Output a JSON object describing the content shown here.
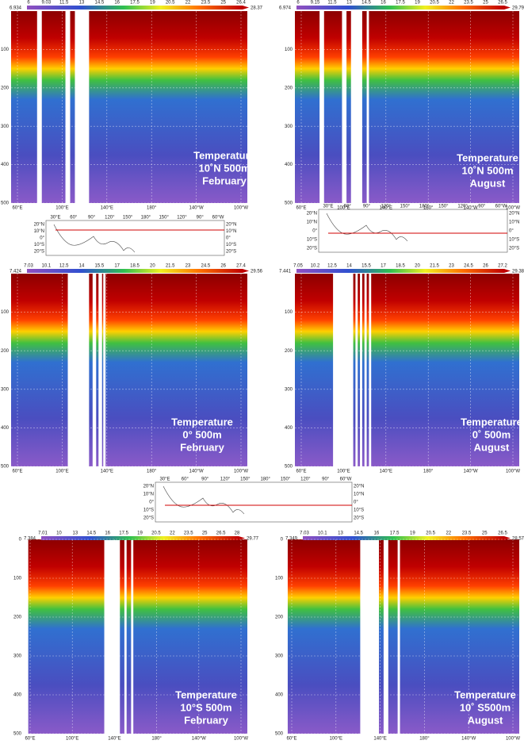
{
  "panels": [
    {
      "colorbar": {
        "min": "6.934",
        "max": "28.37",
        "ticks": [
          "6",
          "9.03",
          "11.5",
          "13",
          "14.5",
          "16",
          "17.5",
          "19",
          "20.5",
          "22",
          "23.5",
          "25",
          "26.4"
        ]
      },
      "y_labels": [
        "100",
        "200",
        "300",
        "400",
        "500"
      ],
      "x_labels": [
        "60°E",
        "100°E",
        "140°E",
        "180°",
        "140°W",
        "100°W"
      ],
      "annotation": [
        "Temperature",
        "10˚N 500m",
        "February"
      ]
    },
    {
      "colorbar": {
        "min": "6.974",
        "max": "29.79",
        "ticks": [
          "6",
          "9.15",
          "11.5",
          "13",
          "14.5",
          "16",
          "17.5",
          "19",
          "20.5",
          "22",
          "23.5",
          "25",
          "26.5"
        ]
      },
      "y_labels": [
        "100",
        "200",
        "300",
        "400",
        "500"
      ],
      "x_labels": [
        "60°E",
        "100°E",
        "140°E",
        "180°",
        "140°W",
        "100°W"
      ],
      "annotation": [
        "Temperature",
        "10˚N 500m",
        "August"
      ]
    },
    {
      "colorbar": {
        "min": "7.424",
        "max": "29.56",
        "ticks": [
          "7.03",
          "10.1",
          "12.5",
          "14",
          "15.5",
          "17",
          "18.5",
          "20",
          "21.5",
          "23",
          "24.5",
          "26",
          "27.4"
        ]
      },
      "y_labels": [
        "100",
        "200",
        "300",
        "400",
        "500"
      ],
      "x_labels": [
        "60°E",
        "100°E",
        "140°E",
        "180°",
        "140°W",
        "100°W"
      ],
      "annotation": [
        "Temperature",
        "0° 500m",
        "February"
      ]
    },
    {
      "colorbar": {
        "min": "7.441",
        "max": "29.38",
        "ticks": [
          "7.05",
          "10.2",
          "12.5",
          "14",
          "15.5",
          "17",
          "18.5",
          "20",
          "21.5",
          "23",
          "24.5",
          "26",
          "27.2"
        ]
      },
      "y_labels": [
        "100",
        "200",
        "300",
        "400",
        "500"
      ],
      "x_labels": [
        "60°E",
        "100°E",
        "140°E",
        "180°",
        "140°W",
        "100°W"
      ],
      "annotation": [
        "Temperature",
        "0˚ 500m",
        "August"
      ]
    },
    {
      "colorbar": {
        "min": "7.384",
        "max": "29.77",
        "ticks": [
          "7.01",
          "10",
          "13",
          "14.5",
          "16",
          "17.5",
          "19",
          "20.5",
          "22",
          "23.5",
          "25",
          "26.5",
          "28"
        ]
      },
      "y_labels": [
        "0",
        "100",
        "200",
        "300",
        "400",
        "500"
      ],
      "x_labels": [
        "60°E",
        "100°E",
        "140°E",
        "180°",
        "140°W",
        "100°W"
      ],
      "annotation": [
        "Temperature",
        "10°S 500m",
        "February"
      ]
    },
    {
      "colorbar": {
        "min": "7.349",
        "max": "28.57",
        "ticks": [
          "7.03",
          "10.1",
          "13",
          "14.5",
          "16",
          "17.5",
          "19",
          "20.5",
          "22",
          "23.5",
          "25",
          "26.5"
        ]
      },
      "y_labels": [
        "0",
        "100",
        "200",
        "300",
        "400",
        "500"
      ],
      "x_labels": [
        "60°E",
        "100°E",
        "140°E",
        "180°",
        "140°W",
        "100°W"
      ],
      "annotation": [
        "Temperature",
        "10˚ S500m",
        "August"
      ]
    }
  ],
  "maps": [
    {
      "lon_labels": [
        "30°E",
        "60°",
        "90°",
        "120°",
        "150°",
        "180°",
        "150°",
        "120°",
        "90°",
        "60°W"
      ],
      "lat_labels": [
        "20°N",
        "10°N",
        "0°",
        "10°S",
        "20°S"
      ]
    },
    {
      "lon_labels": [
        "30°E",
        "60°",
        "90°",
        "120°",
        "150°",
        "180°",
        "150°",
        "120°",
        "90°",
        "60°W"
      ],
      "lat_labels": [
        "20°N",
        "10°N",
        "0°",
        "10°S",
        "20°S"
      ]
    },
    {
      "lon_labels": [
        "30°E",
        "60°",
        "90°",
        "120°",
        "150°",
        "180°",
        "150°",
        "120°",
        "90°",
        "60°W"
      ],
      "lat_labels": [
        "20°N",
        "10°N",
        "0°",
        "10°S",
        "20°S"
      ]
    }
  ]
}
